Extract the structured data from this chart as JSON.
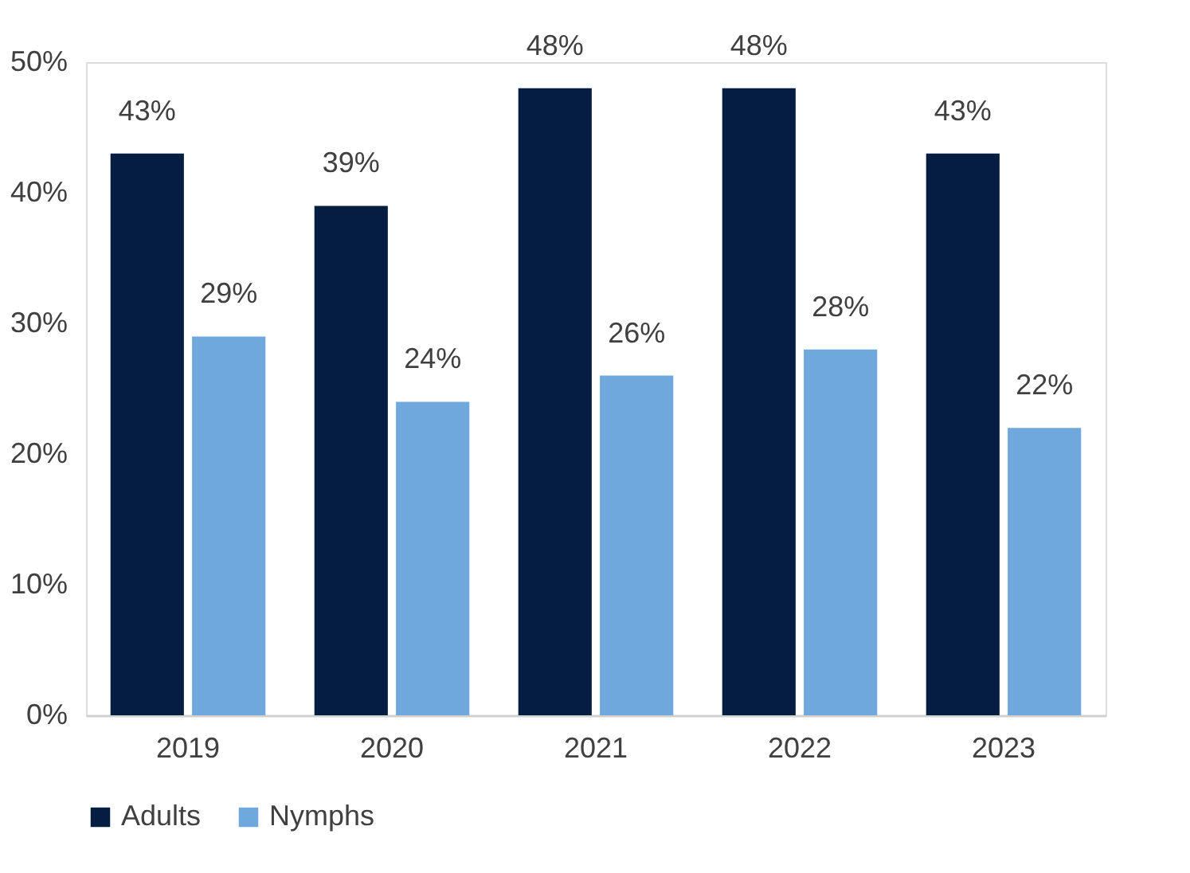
{
  "chart_data": {
    "type": "bar",
    "categories": [
      "2019",
      "2020",
      "2021",
      "2022",
      "2023"
    ],
    "series": [
      {
        "name": "Adults",
        "color": "#061d42",
        "values": [
          43,
          39,
          48,
          48,
          43
        ],
        "value_labels": [
          "43%",
          "39%",
          "48%",
          "48%",
          "43%"
        ]
      },
      {
        "name": "Nymphs",
        "color": "#6fa8dc",
        "values": [
          29,
          24,
          26,
          28,
          22
        ],
        "value_labels": [
          "29%",
          "24%",
          "26%",
          "28%",
          "22%"
        ]
      }
    ],
    "ylim": [
      0,
      50
    ],
    "yticks": [
      {
        "value": 0,
        "label": "0%"
      },
      {
        "value": 10,
        "label": "10%"
      },
      {
        "value": 20,
        "label": "20%"
      },
      {
        "value": 30,
        "label": "30%"
      },
      {
        "value": 40,
        "label": "40%"
      },
      {
        "value": 50,
        "label": "50%"
      }
    ],
    "grid": false,
    "legend": "bottom"
  }
}
